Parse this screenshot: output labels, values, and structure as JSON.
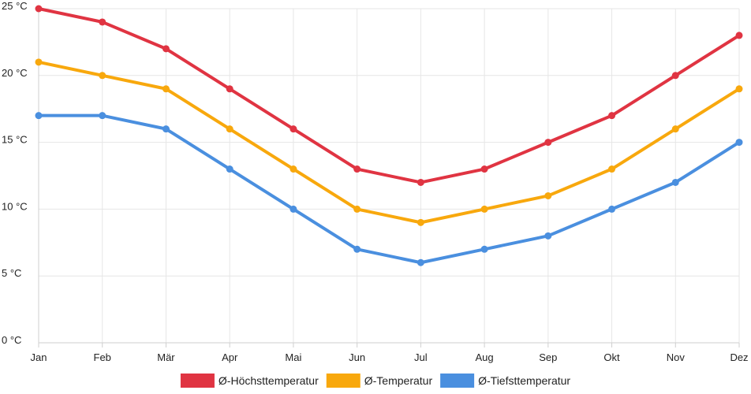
{
  "chart_data": {
    "type": "line",
    "title": "",
    "xlabel": "",
    "ylabel": "",
    "categories": [
      "Jan",
      "Feb",
      "Mär",
      "Apr",
      "Mai",
      "Jun",
      "Jul",
      "Aug",
      "Sep",
      "Okt",
      "Nov",
      "Dez"
    ],
    "ylim": [
      0,
      25
    ],
    "yticks": [
      0,
      5,
      10,
      15,
      20,
      25
    ],
    "ytick_labels": [
      "0 °C",
      "5 °C",
      "10 °C",
      "15 °C",
      "20 °C",
      "25 °C"
    ],
    "grid": true,
    "legend_position": "bottom-center",
    "series": [
      {
        "name": "Ø-Höchsttemperatur",
        "color": "#e03442",
        "values": [
          25,
          24,
          22,
          19,
          16,
          13,
          12,
          13,
          15,
          17,
          20,
          23
        ]
      },
      {
        "name": "Ø-Temperatur",
        "color": "#f8a80d",
        "values": [
          21,
          20,
          19,
          16,
          13,
          10,
          9,
          10,
          11,
          13,
          16,
          19
        ]
      },
      {
        "name": "Ø-Tiefsttemperatur",
        "color": "#4a8fdf",
        "values": [
          17,
          17,
          16,
          13,
          10,
          7,
          6,
          7,
          8,
          10,
          12,
          15
        ]
      }
    ]
  }
}
